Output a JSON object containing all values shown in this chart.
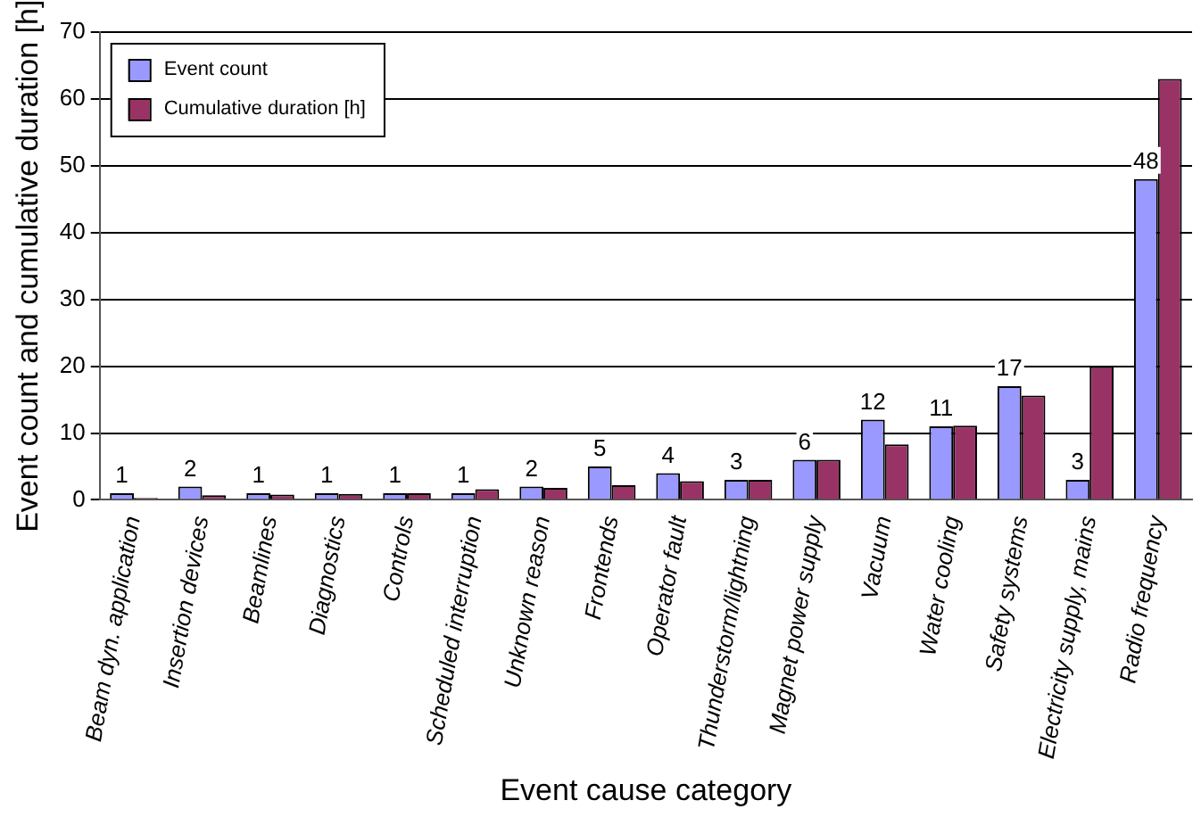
{
  "chart_data": {
    "type": "bar",
    "xlabel": "Event cause category",
    "ylabel": "Event count and cumulative duration [h]",
    "categories": [
      "Beam dyn. application",
      "Insertion devices",
      "Beamlines",
      "Diagnostics",
      "Controls",
      "Scheduled interruption",
      "Unknown reason",
      "Frontends",
      "Operator fault",
      "Thunderstorm/lightning",
      "Magnet power supply",
      "Vacuum",
      "Water cooling",
      "Safety systems",
      "Electricity supply, mains",
      "Radio frequency"
    ],
    "series": [
      {
        "name": "Event count",
        "color": "#9999ff",
        "values": [
          1,
          2,
          1,
          1,
          1,
          1,
          2,
          5,
          4,
          3,
          6,
          12,
          11,
          17,
          3,
          48
        ],
        "value_labels": [
          "1",
          "2",
          "1",
          "1",
          "1",
          "1",
          "2",
          "5",
          "4",
          "3",
          "6",
          "12",
          "11",
          "17",
          "3",
          "48"
        ]
      },
      {
        "name": "Cumulative duration [h]",
        "color": "#993366",
        "values": [
          0.3,
          0.7,
          0.8,
          0.9,
          1.0,
          1.6,
          1.8,
          2.2,
          2.8,
          3.0,
          6.0,
          8.3,
          11.1,
          15.6,
          20,
          63
        ]
      }
    ],
    "ylim": [
      0,
      70
    ],
    "yticks": [
      0,
      10,
      20,
      30,
      40,
      50,
      60,
      70
    ],
    "grid": "y",
    "legend": "top left"
  }
}
